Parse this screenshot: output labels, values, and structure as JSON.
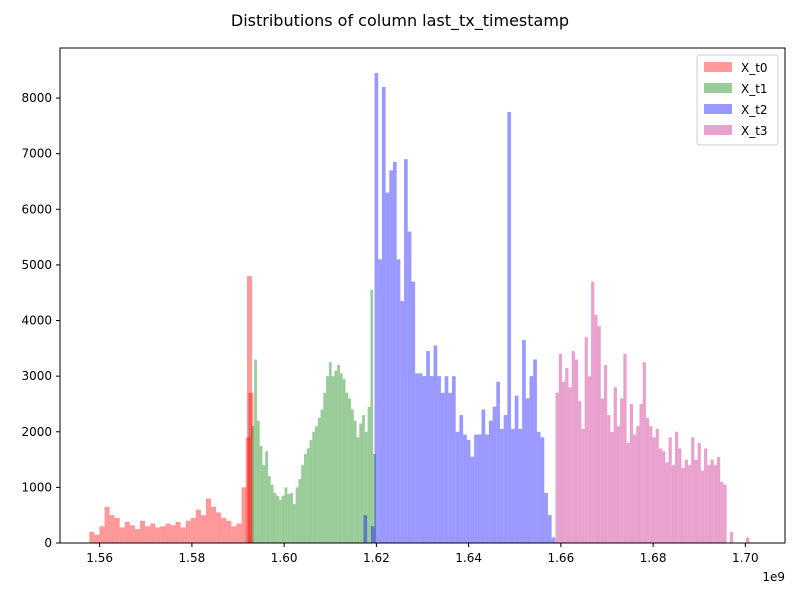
{
  "chart_data": {
    "type": "bar",
    "title": "Distributions of column last_tx_timestamp",
    "xlabel": "",
    "ylabel": "",
    "x_offset_text": "1e9",
    "xlim": [
      1.5514,
      1.7086
    ],
    "ylim": [
      0,
      8900
    ],
    "x_ticks": [
      1.56,
      1.58,
      1.6,
      1.62,
      1.64,
      1.66,
      1.68,
      1.7
    ],
    "x_tick_labels": [
      "1.56",
      "1.58",
      "1.60",
      "1.62",
      "1.64",
      "1.66",
      "1.68",
      "1.70"
    ],
    "y_ticks": [
      0,
      1000,
      2000,
      3000,
      4000,
      5000,
      6000,
      7000,
      8000
    ],
    "y_tick_labels": [
      "0",
      "1000",
      "2000",
      "3000",
      "4000",
      "5000",
      "6000",
      "7000",
      "8000"
    ],
    "legend_position": "top-right",
    "grid": false,
    "series": [
      {
        "name": "X_t0",
        "color": "#ff0000",
        "alpha": 0.4,
        "x": [
          1.5583,
          1.5594,
          1.5605,
          1.5616,
          1.5627,
          1.5638,
          1.5649,
          1.566,
          1.5671,
          1.5682,
          1.5693,
          1.5704,
          1.5715,
          1.5726,
          1.5737,
          1.5748,
          1.5759,
          1.577,
          1.5781,
          1.5792,
          1.5803,
          1.5814,
          1.5825,
          1.5836,
          1.5847,
          1.5858,
          1.5869,
          1.588,
          1.5891,
          1.5902,
          1.5913,
          1.5922,
          1.5925,
          1.5928
        ],
        "width": 0.0011,
        "values": [
          200,
          150,
          300,
          650,
          500,
          450,
          280,
          380,
          320,
          250,
          400,
          300,
          350,
          280,
          300,
          350,
          320,
          380,
          280,
          400,
          450,
          600,
          500,
          800,
          650,
          550,
          450,
          400,
          300,
          350,
          1000,
          1900,
          4800,
          2700
        ]
      },
      {
        "name": "X_t1",
        "color": "#008000",
        "alpha": 0.4,
        "x": [
          1.5932,
          1.5938,
          1.5944,
          1.595,
          1.5956,
          1.5962,
          1.5968,
          1.5974,
          1.598,
          1.5986,
          1.5992,
          1.5998,
          1.6004,
          1.601,
          1.6016,
          1.6022,
          1.6028,
          1.6034,
          1.604,
          1.6046,
          1.6052,
          1.6058,
          1.6064,
          1.607,
          1.6076,
          1.6082,
          1.6088,
          1.6094,
          1.61,
          1.6106,
          1.6112,
          1.6118,
          1.6124,
          1.613,
          1.6136,
          1.6142,
          1.6148,
          1.6154,
          1.616,
          1.6166,
          1.6172,
          1.6178,
          1.6184,
          1.619,
          1.6196
        ],
        "width": 0.0006,
        "values": [
          2100,
          3300,
          2200,
          1750,
          1400,
          1650,
          1200,
          1050,
          900,
          850,
          780,
          850,
          1000,
          880,
          900,
          700,
          1000,
          1150,
          1400,
          1600,
          1700,
          1850,
          2000,
          2100,
          2250,
          2400,
          2700,
          3000,
          3250,
          3000,
          3100,
          3200,
          3050,
          2950,
          2700,
          2600,
          2400,
          2200,
          1900,
          2150,
          2300,
          2000,
          2450,
          4550,
          1600
        ]
      },
      {
        "name": "X_t2",
        "color": "#0000ff",
        "alpha": 0.4,
        "x": [
          1.6176,
          1.6192,
          1.62,
          1.6208,
          1.6216,
          1.6224,
          1.6232,
          1.624,
          1.6248,
          1.6256,
          1.6264,
          1.6272,
          1.628,
          1.6288,
          1.6296,
          1.6304,
          1.6312,
          1.632,
          1.6328,
          1.6336,
          1.6344,
          1.6352,
          1.636,
          1.6368,
          1.6376,
          1.6384,
          1.6392,
          1.64,
          1.6408,
          1.6416,
          1.6424,
          1.6432,
          1.644,
          1.6448,
          1.6456,
          1.6464,
          1.6472,
          1.648,
          1.6488,
          1.6496,
          1.6504,
          1.6512,
          1.652,
          1.6528,
          1.6536,
          1.6544,
          1.6552,
          1.656,
          1.6568,
          1.6576,
          1.6584
        ],
        "width": 0.0008,
        "values": [
          500,
          300,
          8450,
          5100,
          8200,
          6300,
          6700,
          6850,
          5100,
          4350,
          6900,
          5600,
          4700,
          3050,
          3050,
          3000,
          3450,
          3000,
          3550,
          3000,
          2700,
          3000,
          2700,
          3000,
          2000,
          2300,
          1950,
          1850,
          1550,
          1950,
          1950,
          2400,
          1950,
          2200,
          2450,
          2900,
          2050,
          2300,
          7750,
          2050,
          2650,
          2050,
          3650,
          2600,
          3000,
          3300,
          2000,
          1900,
          900,
          500,
          100
        ]
      },
      {
        "name": "X_t3",
        "color": "#c71585",
        "alpha": 0.4,
        "x": [
          1.6592,
          1.6599,
          1.6606,
          1.6613,
          1.662,
          1.6627,
          1.6634,
          1.6641,
          1.6648,
          1.6655,
          1.6662,
          1.6669,
          1.6676,
          1.6683,
          1.669,
          1.6697,
          1.6704,
          1.6711,
          1.6718,
          1.6725,
          1.6732,
          1.6739,
          1.6746,
          1.6753,
          1.676,
          1.6767,
          1.6774,
          1.6781,
          1.6788,
          1.6795,
          1.6802,
          1.6809,
          1.6816,
          1.6823,
          1.683,
          1.6837,
          1.6844,
          1.6851,
          1.6858,
          1.6865,
          1.6872,
          1.6879,
          1.6886,
          1.6893,
          1.69,
          1.6907,
          1.6914,
          1.6921,
          1.6928,
          1.6935,
          1.6942,
          1.6949,
          1.6956,
          1.697,
          1.7005
        ],
        "width": 0.0007,
        "values": [
          2700,
          3400,
          2900,
          3150,
          2800,
          3450,
          3300,
          2550,
          2050,
          3700,
          3000,
          4700,
          4100,
          3900,
          2600,
          3200,
          2300,
          2000,
          2800,
          2100,
          2600,
          3400,
          1800,
          2500,
          1950,
          2100,
          2500,
          3250,
          2250,
          2100,
          1900,
          2050,
          1700,
          1650,
          1450,
          1900,
          1400,
          2000,
          1700,
          1350,
          1500,
          1400,
          1900,
          1500,
          1800,
          1300,
          1700,
          1400,
          1500,
          1400,
          1550,
          1100,
          1050,
          200,
          100
        ]
      }
    ]
  }
}
